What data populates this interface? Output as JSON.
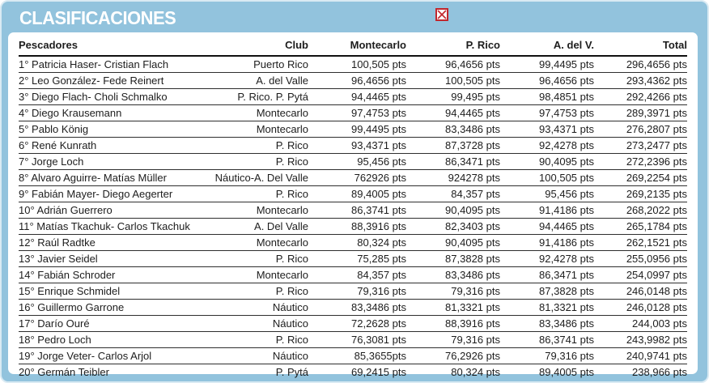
{
  "header": {
    "title": "CLASIFICACIONES",
    "icon": "broken-image-icon"
  },
  "colors": {
    "panel_blue": "#92c3dd",
    "panel_edge": "#d9eaf3",
    "card_bg": "#ffffff",
    "title_text": "#ffffff",
    "table_text": "#1d1d1d",
    "row_line": "#2e2e2e",
    "header_line": "#101010",
    "broken_icon_red": "#c1272d"
  },
  "chart_data": {
    "type": "table",
    "title": "CLASIFICACIONES",
    "columns": [
      "Pescadores",
      "Club",
      "Montecarlo",
      "P. Rico",
      "A. del V.",
      "Total"
    ],
    "rows": [
      [
        "1° Patricia Haser- Cristian Flach",
        "Puerto Rico",
        "100,505 pts",
        "96,4656 pts",
        "99,4495 pts",
        "296,4656 pts"
      ],
      [
        "2° Leo González- Fede Reinert",
        "A. del Valle",
        "96,4656 pts",
        "100,505 pts",
        "96,4656 pts",
        "293,4362 pts"
      ],
      [
        "3° Diego Flach- Choli Schmalko",
        "P. Rico. P. Pytá",
        "94,4465 pts",
        "99,495 pts",
        "98,4851 pts",
        "292,4266 pts"
      ],
      [
        "4° Diego Krausemann",
        "Montecarlo",
        "97,4753 pts",
        "94,4465 pts",
        "97,4753 pts",
        "289,3971 pts"
      ],
      [
        "5° Pablo König",
        "Montecarlo",
        "99,4495 pts",
        "83,3486 pts",
        "93,4371 pts",
        "276,2807 pts"
      ],
      [
        "6° René Kunrath",
        "P. Rico",
        "93,4371 pts",
        "87,3728 pts",
        "92,4278 pts",
        "273,2477 pts"
      ],
      [
        "7° Jorge Loch",
        "P. Rico",
        "95,456 pts",
        "86,3471 pts",
        "90,4095 pts",
        "272,2396 pts"
      ],
      [
        "8° Alvaro Aguirre- Matías Müller",
        "Náutico-A. Del Valle",
        "762926 pts",
        "924278 pts",
        "100,505 pts",
        "269,2254 pts"
      ],
      [
        "9° Fabián Mayer- Diego Aegerter",
        "P. Rico",
        "89,4005 pts",
        "84,357 pts",
        "95,456 pts",
        "269,2135 pts"
      ],
      [
        "10° Adrián Guerrero",
        "Montecarlo",
        "86,3741 pts",
        "90,4095 pts",
        "91,4186 pts",
        "268,2022 pts"
      ],
      [
        "11° Matías Tkachuk- Carlos Tkachuk",
        "A. Del Valle",
        "88,3916 pts",
        "82,3403 pts",
        "94,4465 pts",
        "265,1784 pts"
      ],
      [
        "12° Raúl Radtke",
        "Montecarlo",
        "80,324 pts",
        "90,4095 pts",
        "91,4186 pts",
        "262,1521 pts"
      ],
      [
        "13° Javier Seidel",
        "P. Rico",
        "75,285 pts",
        "87,3828 pts",
        "92,4278 pts",
        "255,0956 pts"
      ],
      [
        "14° Fabián Schroder",
        "Montecarlo",
        "84,357 pts",
        "83,3486 pts",
        "86,3471 pts",
        "254,0997 pts"
      ],
      [
        "15° Enrique Schmidel",
        "P. Rico",
        "79,316 pts",
        "79,316 pts",
        "87,3828 pts",
        "246,0148 pts"
      ],
      [
        "16° Guillermo Garrone",
        "Náutico",
        "83,3486 pts",
        "81,3321 pts",
        "81,3321 pts",
        "246,0128 pts"
      ],
      [
        "17° Darío Ouré",
        "Náutico",
        "72,2628 pts",
        "88,3916 pts",
        "83,3486 pts",
        "244,003 pts"
      ],
      [
        "18° Pedro Loch",
        "P. Rico",
        "76,3081 pts",
        "79,316 pts",
        "86,3741 pts",
        "243,9982 pts"
      ],
      [
        "19° Jorge Veter- Carlos Arjol",
        "Náutico",
        "85,3655pts",
        "76,2926 pts",
        "79,316 pts",
        "240,9741 pts"
      ],
      [
        "20° Germán Teibler",
        "P. Pytá",
        "69,2415 pts",
        "80,324 pts",
        "89,4005 pts",
        "238,966 pts"
      ]
    ]
  }
}
